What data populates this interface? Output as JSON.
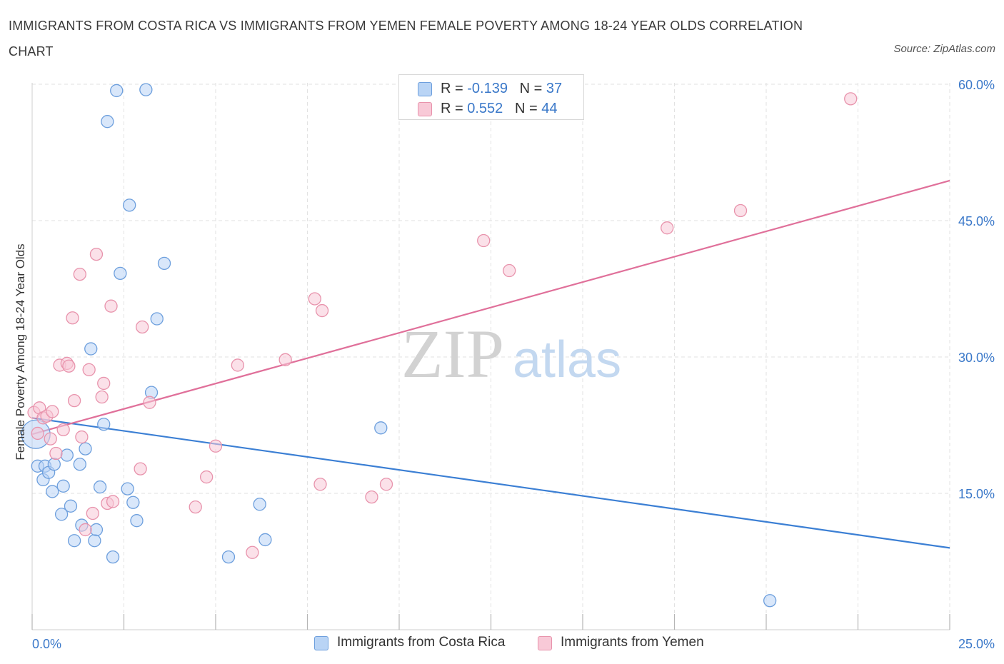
{
  "title": "IMMIGRANTS FROM COSTA RICA VS IMMIGRANTS FROM YEMEN FEMALE POVERTY AMONG 18-24 YEAR OLDS CORRELATION CHART",
  "source": "Source: ZipAtlas.com",
  "legend": {
    "series": [
      {
        "r_label": "R =",
        "r_value": "-0.139",
        "n_label": "N =",
        "n_value": "37"
      },
      {
        "r_label": "R =",
        "r_value": "0.552",
        "n_label": "N =",
        "n_value": "44"
      }
    ]
  },
  "watermark": {
    "zip": "ZIP",
    "atlas": "atlas"
  },
  "colors": {
    "blue_fill": "#b9d4f5",
    "blue_stroke": "#6d9fdd",
    "blue_line": "#3b7fd4",
    "pink_fill": "#f8c9d7",
    "pink_stroke": "#e893ac",
    "pink_line": "#e0709a",
    "tick_label": "#3a78c9",
    "grid": "#e2e2e2"
  },
  "chart_data": {
    "type": "scatter",
    "title": "IMMIGRANTS FROM COSTA RICA VS IMMIGRANTS FROM YEMEN FEMALE POVERTY AMONG 18-24 YEAR OLDS CORRELATION CHART",
    "xlabel": "",
    "ylabel": "Female Poverty Among 18-24 Year Olds",
    "xlim": [
      0,
      25
    ],
    "ylim": [
      0,
      60
    ],
    "x_tick_labels": [
      {
        "value": 0,
        "label": "0.0%"
      },
      {
        "value": 25,
        "label": "25.0%"
      }
    ],
    "y_tick_labels": [
      {
        "value": 15,
        "label": "15.0%"
      },
      {
        "value": 30,
        "label": "30.0%"
      },
      {
        "value": 45,
        "label": "45.0%"
      },
      {
        "value": 60,
        "label": "60.0%"
      }
    ],
    "grid": true,
    "legend_position": "top-center",
    "series": [
      {
        "name": "Immigrants from Costa Rica",
        "color": "#6d9fdd",
        "trend": {
          "x": [
            0,
            25
          ],
          "y": [
            23.3,
            9.0
          ]
        },
        "points": [
          {
            "x": 0.1,
            "y": 21.5,
            "big": true
          },
          {
            "x": 0.15,
            "y": 18.0
          },
          {
            "x": 0.3,
            "y": 16.5
          },
          {
            "x": 0.35,
            "y": 18.0
          },
          {
            "x": 0.45,
            "y": 17.3
          },
          {
            "x": 0.55,
            "y": 15.2
          },
          {
            "x": 0.6,
            "y": 18.2
          },
          {
            "x": 0.8,
            "y": 12.7
          },
          {
            "x": 0.85,
            "y": 15.8
          },
          {
            "x": 0.95,
            "y": 19.2
          },
          {
            "x": 1.05,
            "y": 13.6
          },
          {
            "x": 1.15,
            "y": 9.8
          },
          {
            "x": 1.3,
            "y": 18.2
          },
          {
            "x": 1.35,
            "y": 11.5
          },
          {
            "x": 1.45,
            "y": 19.9
          },
          {
            "x": 1.6,
            "y": 30.9
          },
          {
            "x": 1.7,
            "y": 9.8
          },
          {
            "x": 1.75,
            "y": 11.0
          },
          {
            "x": 1.85,
            "y": 15.7
          },
          {
            "x": 1.95,
            "y": 22.6
          },
          {
            "x": 2.05,
            "y": 55.9
          },
          {
            "x": 2.2,
            "y": 8.0
          },
          {
            "x": 2.3,
            "y": 59.3
          },
          {
            "x": 2.4,
            "y": 39.2
          },
          {
            "x": 2.6,
            "y": 15.5
          },
          {
            "x": 2.65,
            "y": 46.7
          },
          {
            "x": 2.75,
            "y": 14.0
          },
          {
            "x": 2.85,
            "y": 12.0
          },
          {
            "x": 3.1,
            "y": 59.4
          },
          {
            "x": 3.25,
            "y": 26.1
          },
          {
            "x": 3.4,
            "y": 34.2
          },
          {
            "x": 3.6,
            "y": 40.3
          },
          {
            "x": 5.35,
            "y": 8.0
          },
          {
            "x": 6.2,
            "y": 13.8
          },
          {
            "x": 6.35,
            "y": 9.9
          },
          {
            "x": 9.5,
            "y": 22.2
          },
          {
            "x": 20.1,
            "y": 3.2
          }
        ]
      },
      {
        "name": "Immigrants from Yemen",
        "color": "#e893ac",
        "trend": {
          "x": [
            0,
            25
          ],
          "y": [
            21.5,
            49.4
          ]
        },
        "points": [
          {
            "x": 0.05,
            "y": 23.9
          },
          {
            "x": 0.15,
            "y": 21.6
          },
          {
            "x": 0.2,
            "y": 24.4
          },
          {
            "x": 0.3,
            "y": 23.3
          },
          {
            "x": 0.4,
            "y": 23.5
          },
          {
            "x": 0.5,
            "y": 21.0
          },
          {
            "x": 0.55,
            "y": 24.0
          },
          {
            "x": 0.65,
            "y": 19.4
          },
          {
            "x": 0.75,
            "y": 29.1
          },
          {
            "x": 0.85,
            "y": 22.0
          },
          {
            "x": 0.95,
            "y": 29.3
          },
          {
            "x": 1.0,
            "y": 29.0
          },
          {
            "x": 1.1,
            "y": 34.3
          },
          {
            "x": 1.15,
            "y": 25.2
          },
          {
            "x": 1.3,
            "y": 39.1
          },
          {
            "x": 1.35,
            "y": 21.2
          },
          {
            "x": 1.45,
            "y": 11.0
          },
          {
            "x": 1.55,
            "y": 28.6
          },
          {
            "x": 1.65,
            "y": 12.8
          },
          {
            "x": 1.75,
            "y": 41.3
          },
          {
            "x": 1.9,
            "y": 25.6
          },
          {
            "x": 1.95,
            "y": 27.1
          },
          {
            "x": 2.05,
            "y": 13.9
          },
          {
            "x": 2.15,
            "y": 35.6
          },
          {
            "x": 2.2,
            "y": 14.1
          },
          {
            "x": 2.95,
            "y": 17.7
          },
          {
            "x": 3.0,
            "y": 33.3
          },
          {
            "x": 3.2,
            "y": 25.0
          },
          {
            "x": 4.45,
            "y": 13.5
          },
          {
            "x": 4.75,
            "y": 16.8
          },
          {
            "x": 5.0,
            "y": 20.2
          },
          {
            "x": 5.6,
            "y": 29.1
          },
          {
            "x": 6.0,
            "y": 8.5
          },
          {
            "x": 6.9,
            "y": 29.7
          },
          {
            "x": 7.7,
            "y": 36.4
          },
          {
            "x": 7.9,
            "y": 35.1
          },
          {
            "x": 7.85,
            "y": 16.0
          },
          {
            "x": 9.25,
            "y": 14.6
          },
          {
            "x": 9.65,
            "y": 16.0
          },
          {
            "x": 12.3,
            "y": 42.8
          },
          {
            "x": 13.0,
            "y": 39.5
          },
          {
            "x": 17.3,
            "y": 44.2
          },
          {
            "x": 19.3,
            "y": 46.1
          },
          {
            "x": 22.3,
            "y": 58.4
          }
        ]
      }
    ]
  }
}
